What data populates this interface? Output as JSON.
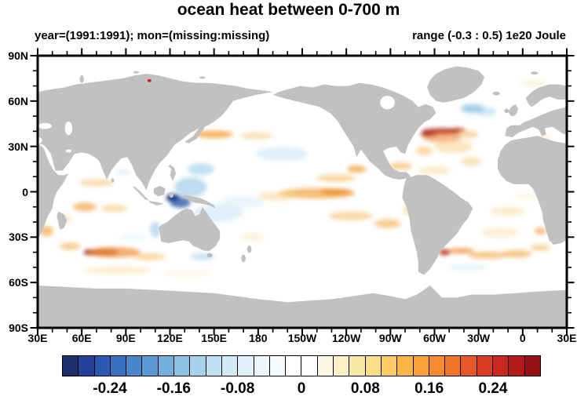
{
  "title": "ocean heat between 0-700 m",
  "subtitle_left": "year=(1991:1991); mon=(missing:missing)",
  "subtitle_right": "range (-0.3 : 0.5) 1e20 Joule",
  "map": {
    "y_tick_labels": [
      "90N",
      "60N",
      "30N",
      "0",
      "30S",
      "60S",
      "90S"
    ],
    "x_tick_labels": [
      "30E",
      "60E",
      "90E",
      "120E",
      "150E",
      "180",
      "150W",
      "120W",
      "90W",
      "60W",
      "30W",
      "0",
      "30E"
    ],
    "land_color": "#c1c1c1",
    "ocean_color": "#ffffff",
    "frame_color": "#000000"
  },
  "colorbar": {
    "labels": [
      "-0.24",
      "-0.16",
      "-0.08",
      "0",
      "0.08",
      "0.16",
      "0.24"
    ],
    "colors": [
      "#20306c",
      "#23409a",
      "#2b58b0",
      "#3a70bf",
      "#4a86ca",
      "#5c9ad3",
      "#74aedc",
      "#8dc1e5",
      "#a7d2ec",
      "#bfe0f2",
      "#d2eaf6",
      "#e1f1f9",
      "#edf6fb",
      "#f7fbfd",
      "#ffffff",
      "#ffffff",
      "#fdf8e3",
      "#fbf1c6",
      "#fae9a6",
      "#fbdc87",
      "#fcca67",
      "#fbb548",
      "#f9a038",
      "#f68c2f",
      "#f0742a",
      "#e65827",
      "#da3d23",
      "#c9281e",
      "#b21b1a",
      "#951317"
    ]
  },
  "chart_data": {
    "type": "heatmap",
    "title": "ocean heat between 0-700 m",
    "subtitle_left": "year=(1991:1991); mon=(missing:missing)",
    "subtitle_right": "range (-0.3 : 0.5) 1e20 Joule",
    "units": "1e20 Joule",
    "value_range": [
      -0.3,
      0.5
    ],
    "projection": "cylindrical equidistant, lon 30E to 30E (390), lat 90S to 90N",
    "x_axis": {
      "ticks_deg": [
        30,
        60,
        90,
        120,
        150,
        180,
        210,
        240,
        270,
        300,
        330,
        360,
        390
      ],
      "labels": [
        "30E",
        "60E",
        "90E",
        "120E",
        "150E",
        "180",
        "150W",
        "120W",
        "90W",
        "60W",
        "30W",
        "0",
        "30E"
      ],
      "minor_step_deg": 10
    },
    "y_axis": {
      "ticks_deg": [
        90,
        60,
        30,
        0,
        -30,
        -60,
        -90
      ],
      "labels": [
        "90N",
        "60N",
        "30N",
        "0",
        "30S",
        "60S",
        "90S"
      ],
      "minor_step_deg": 10
    },
    "colorbar_levels": {
      "min": -0.3,
      "max": 0.3,
      "step": 0.02,
      "labeled_values": [
        -0.24,
        -0.16,
        -0.08,
        0,
        0.08,
        0.16,
        0.24
      ]
    },
    "features": [
      {
        "name": "kuroshio-warm-band",
        "lon": 150,
        "lat": 38,
        "dlon": 26,
        "dlat": 5,
        "color": "#f2a23e",
        "opacity": 0.8
      },
      {
        "name": "npac-warm-extension",
        "lon": 179,
        "lat": 37,
        "dlon": 22,
        "dlat": 5,
        "color": "#f7cd86",
        "opacity": 0.55
      },
      {
        "name": "npac-subtropical-cool",
        "lon": 196,
        "lat": 25,
        "dlon": 36,
        "dlat": 9,
        "color": "#c6e3f3",
        "opacity": 0.55
      },
      {
        "name": "mexico-coast-warm",
        "lon": 247,
        "lat": 15,
        "dlon": 13,
        "dlat": 5,
        "color": "#f5a644",
        "opacity": 0.75
      },
      {
        "name": "ne-tropical-pacific-warm",
        "lon": 233,
        "lat": 9,
        "dlon": 26,
        "dlat": 5,
        "color": "#f7bd66",
        "opacity": 0.6
      },
      {
        "name": "equatorial-pacific-warm-band",
        "lon": 220,
        "lat": -1,
        "dlon": 52,
        "dlat": 7,
        "color": "#f3a849",
        "opacity": 0.75
      },
      {
        "name": "equatorial-pacific-warm-core",
        "lon": 233,
        "lat": 0,
        "dlon": 22,
        "dlat": 4,
        "color": "#ec8d33",
        "opacity": 0.85
      },
      {
        "name": "west-equatorial-warm-wing",
        "lon": 193,
        "lat": -3,
        "dlon": 26,
        "dlat": 6,
        "color": "#f9d694",
        "opacity": 0.55
      },
      {
        "name": "spac-warm-band",
        "lon": 243,
        "lat": -16,
        "dlon": 30,
        "dlat": 6,
        "color": "#f7c271",
        "opacity": 0.6
      },
      {
        "name": "chile-coast-warm",
        "lon": 268,
        "lat": -21,
        "dlon": 18,
        "dlat": 6,
        "color": "#f4ad50",
        "opacity": 0.6
      },
      {
        "name": "peru-coast-warm",
        "lon": 283,
        "lat": -12,
        "dlon": 8,
        "dlat": 7,
        "color": "#f7c271",
        "opacity": 0.55
      },
      {
        "name": "banda-sea-cold-core",
        "lon": 122,
        "lat": -4,
        "dlon": 9,
        "dlat": 5,
        "color": "#17316f",
        "opacity": 1
      },
      {
        "name": "indonesia-cold",
        "lon": 127,
        "lat": -7,
        "dlon": 14,
        "dlat": 7,
        "color": "#2d59ab",
        "opacity": 0.8
      },
      {
        "name": "west-pacific-cool",
        "lon": 134,
        "lat": 3,
        "dlon": 22,
        "dlat": 13,
        "color": "#80b9e1",
        "opacity": 0.5
      },
      {
        "name": "philippine-sea-cool",
        "lon": 141,
        "lat": 15,
        "dlon": 18,
        "dlat": 8,
        "color": "#90c5e7",
        "opacity": 0.55
      },
      {
        "name": "coral-sea-cool",
        "lon": 153,
        "lat": -14,
        "dlon": 34,
        "dlat": 12,
        "color": "#baddf1",
        "opacity": 0.45
      },
      {
        "name": "central-spac-cool",
        "lon": 169,
        "lat": -7,
        "dlon": 30,
        "dlat": 8,
        "color": "#d0eaf7",
        "opacity": 0.45
      },
      {
        "name": "west-australia-cool",
        "lon": 110,
        "lat": -25,
        "dlon": 7,
        "dlat": 11,
        "color": "#90c5e7",
        "opacity": 0.55
      },
      {
        "name": "south-australia-cool",
        "lon": 142,
        "lat": -43,
        "dlon": 16,
        "dlat": 5,
        "color": "#aad5ee",
        "opacity": 0.6
      },
      {
        "name": "north-nz-warm",
        "lon": 176,
        "lat": -30,
        "dlon": 16,
        "dlat": 5,
        "color": "#f9dfa8",
        "opacity": 0.45
      },
      {
        "name": "south-india-warm",
        "lon": 70,
        "lat": 6,
        "dlon": 24,
        "dlat": 5,
        "color": "#f6bd68",
        "opacity": 0.5
      },
      {
        "name": "tropical-indian-warm-west",
        "lon": 62,
        "lat": -10,
        "dlon": 16,
        "dlat": 6,
        "color": "#f2a23e",
        "opacity": 0.65
      },
      {
        "name": "tropical-indian-warm-east",
        "lon": 82,
        "lat": -11,
        "dlon": 18,
        "dlat": 5,
        "color": "#f7c271",
        "opacity": 0.55
      },
      {
        "name": "mozambique-warm",
        "lon": 36,
        "lat": -26,
        "dlon": 9,
        "dlat": 7,
        "color": "#f2a23e",
        "opacity": 0.65
      },
      {
        "name": "madagascar-warm",
        "lon": 48,
        "lat": -18,
        "dlon": 10,
        "dlat": 6,
        "color": "#f9d694",
        "opacity": 0.5
      },
      {
        "name": "sindian-warm-core-dark",
        "lon": 66,
        "lat": -40,
        "dlon": 9,
        "dlat": 4,
        "color": "#8f1113",
        "opacity": 0.95
      },
      {
        "name": "sindian-warm-core",
        "lon": 75,
        "lat": -40,
        "dlon": 20,
        "dlat": 4,
        "color": "#a6281c",
        "opacity": 0.85
      },
      {
        "name": "sindian-warm-halo",
        "lon": 82,
        "lat": -40,
        "dlon": 36,
        "dlat": 7,
        "color": "#ef8c34",
        "opacity": 0.7
      },
      {
        "name": "sindian-warm-east",
        "lon": 106,
        "lat": -43,
        "dlon": 22,
        "dlat": 5,
        "color": "#f6bd68",
        "opacity": 0.55
      },
      {
        "name": "agulhas-warm",
        "lon": 52,
        "lat": -36,
        "dlon": 14,
        "dlat": 5,
        "color": "#f4ad50",
        "opacity": 0.6
      },
      {
        "name": "sindian-50s-warm-band",
        "lon": 84,
        "lat": -52,
        "dlon": 46,
        "dlat": 5,
        "color": "#f9dfa8",
        "opacity": 0.5
      },
      {
        "name": "sindian-50s-warm-east",
        "lon": 132,
        "lat": -54,
        "dlon": 34,
        "dlat": 4,
        "color": "#fbeccb",
        "opacity": 0.45
      },
      {
        "name": "central-indian-cool",
        "lon": 95,
        "lat": -30,
        "dlon": 20,
        "dlat": 6,
        "color": "#dff0fa",
        "opacity": 0.4
      },
      {
        "name": "bay-of-bengal-cool",
        "lon": 88,
        "lat": 13,
        "dlon": 10,
        "dlat": 4,
        "color": "#c6e3f3",
        "opacity": 0.45
      },
      {
        "name": "gulf-stream-warm-band",
        "lon": 305,
        "lat": 40,
        "dlon": 27,
        "dlat": 4,
        "color": "#aa1511",
        "opacity": 0.85
      },
      {
        "name": "gulf-stream-warm-core",
        "lon": 296,
        "lat": 38,
        "dlon": 11,
        "dlat": 3,
        "color": "#8f1113",
        "opacity": 0.95
      },
      {
        "name": "gulf-stream-warm-tail",
        "lon": 316,
        "lat": 41,
        "dlon": 10,
        "dlat": 3,
        "color": "#c03a1f",
        "opacity": 0.75
      },
      {
        "name": "natl-warm-surround",
        "lon": 305,
        "lat": 36,
        "dlon": 26,
        "dlat": 7,
        "color": "#ee7d2c",
        "opacity": 0.55
      },
      {
        "name": "natl-warm-east",
        "lon": 322,
        "lat": 38,
        "dlon": 16,
        "dlat": 5,
        "color": "#f4ad50",
        "opacity": 0.5
      },
      {
        "name": "s-greenland-cool",
        "lon": 326,
        "lat": 55,
        "dlon": 16,
        "dlat": 6,
        "color": "#75b3de",
        "opacity": 0.65
      },
      {
        "name": "s-greenland-cool-east",
        "lon": 335,
        "lat": 53,
        "dlon": 14,
        "dlat": 6,
        "color": "#aad5ee",
        "opacity": 0.55
      },
      {
        "name": "subtropical-natl-warm",
        "lon": 313,
        "lat": 30,
        "dlon": 26,
        "dlat": 9,
        "color": "#f7cd86",
        "opacity": 0.5
      },
      {
        "name": "bahamas-warm",
        "lon": 293,
        "lat": 27,
        "dlon": 12,
        "dlat": 6,
        "color": "#f6bd68",
        "opacity": 0.55
      },
      {
        "name": "caribbean-warm",
        "lon": 277,
        "lat": 17,
        "dlon": 16,
        "dlat": 5,
        "color": "#f4ad50",
        "opacity": 0.55
      },
      {
        "name": "tropical-natl-warm",
        "lon": 300,
        "lat": 14,
        "dlon": 22,
        "dlat": 6,
        "color": "#f9d694",
        "opacity": 0.45
      },
      {
        "name": "natl-ne-warm",
        "lon": 325,
        "lat": 20,
        "dlon": 14,
        "dlat": 6,
        "color": "#f7c271",
        "opacity": 0.45
      },
      {
        "name": "brazil-malvinas-warm-core",
        "lon": 307,
        "lat": -40,
        "dlon": 8,
        "dlat": 4,
        "color": "#b8251a",
        "opacity": 0.85
      },
      {
        "name": "satl-warm-band-w",
        "lon": 318,
        "lat": -39,
        "dlon": 18,
        "dlat": 4,
        "color": "#ef8c34",
        "opacity": 0.7
      },
      {
        "name": "satl-warm-band-c",
        "lon": 336,
        "lat": -42,
        "dlon": 26,
        "dlat": 5,
        "color": "#f4ad50",
        "opacity": 0.65
      },
      {
        "name": "satl-warm-band-e",
        "lon": 356,
        "lat": -41,
        "dlon": 20,
        "dlat": 5,
        "color": "#f2a23e",
        "opacity": 0.6
      },
      {
        "name": "satl-warm-band-far-e",
        "lon": 372,
        "lat": -37,
        "dlon": 14,
        "dlat": 5,
        "color": "#f6bd68",
        "opacity": 0.55
      },
      {
        "name": "satl-subtropical-warm",
        "lon": 345,
        "lat": -27,
        "dlon": 26,
        "dlat": 7,
        "color": "#f9dfa8",
        "opacity": 0.45
      },
      {
        "name": "satl-tropical-warm",
        "lon": 350,
        "lat": -13,
        "dlon": 24,
        "dlat": 6,
        "color": "#f9d694",
        "opacity": 0.45
      },
      {
        "name": "angola-warm",
        "lon": 372,
        "lat": -26,
        "dlon": 8,
        "dlat": 5,
        "color": "#f19a3a",
        "opacity": 0.6
      },
      {
        "name": "satl-50s-cool",
        "lon": 322,
        "lat": -50,
        "dlon": 28,
        "dlat": 5,
        "color": "#d7edf8",
        "opacity": 0.5
      },
      {
        "name": "gulf-guinea-warm",
        "lon": 362,
        "lat": -3,
        "dlon": 16,
        "dlat": 5,
        "color": "#fbeccb",
        "opacity": 0.4
      },
      {
        "name": "barents-warm",
        "lon": 367,
        "lat": 72,
        "dlon": 18,
        "dlat": 4,
        "color": "#f7e3b0",
        "opacity": 0.45
      },
      {
        "name": "nw-africa-warm",
        "lon": 384,
        "lat": 30,
        "dlon": 10,
        "dlat": 4,
        "color": "#f4ad50",
        "opacity": 0.5
      },
      {
        "name": "med-warm",
        "lon": 374,
        "lat": 36,
        "dlon": 10,
        "dlat": 3,
        "color": "#f9d694",
        "opacity": 0.45
      },
      {
        "name": "arctic-red-dot",
        "lon": 106,
        "lat": 73.5,
        "dlon": 1.5,
        "dlat": 1,
        "color": "#cc2222",
        "opacity": 1
      }
    ]
  }
}
